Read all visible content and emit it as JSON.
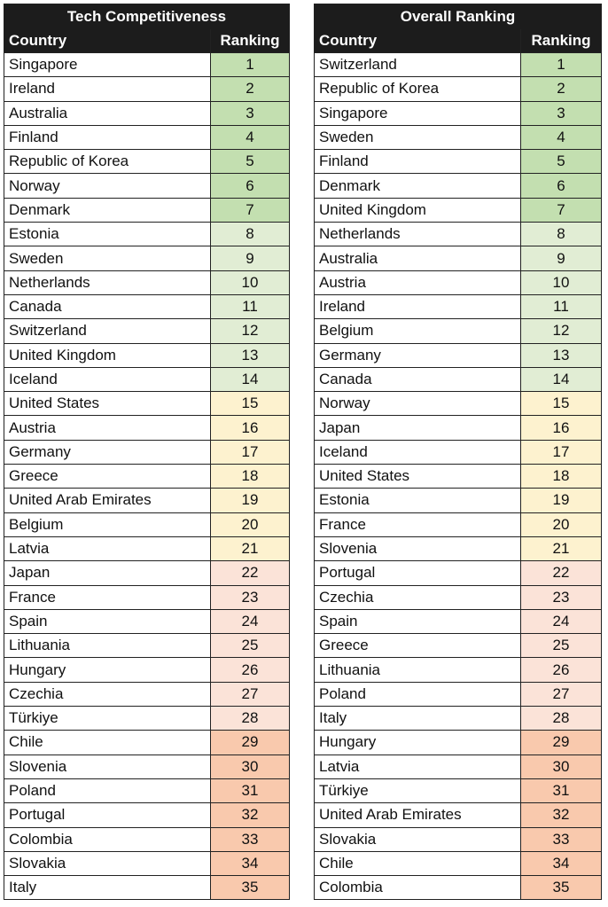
{
  "palette": [
    "#c3dfb0",
    "#e1edd4",
    "#fdf2cf",
    "#fbe3d8",
    "#f9c9ad"
  ],
  "tables": [
    {
      "title": "Tech Competitiveness",
      "col_country": "Country",
      "col_rank": "Ranking",
      "rows": [
        {
          "country": "Singapore",
          "rank": 1
        },
        {
          "country": "Ireland",
          "rank": 2
        },
        {
          "country": "Australia",
          "rank": 3
        },
        {
          "country": "Finland",
          "rank": 4
        },
        {
          "country": "Republic of Korea",
          "rank": 5
        },
        {
          "country": "Norway",
          "rank": 6
        },
        {
          "country": "Denmark",
          "rank": 7
        },
        {
          "country": "Estonia",
          "rank": 8
        },
        {
          "country": "Sweden",
          "rank": 9
        },
        {
          "country": "Netherlands",
          "rank": 10
        },
        {
          "country": "Canada",
          "rank": 11
        },
        {
          "country": "Switzerland",
          "rank": 12
        },
        {
          "country": "United Kingdom",
          "rank": 13
        },
        {
          "country": "Iceland",
          "rank": 14
        },
        {
          "country": "United States",
          "rank": 15
        },
        {
          "country": "Austria",
          "rank": 16
        },
        {
          "country": "Germany",
          "rank": 17
        },
        {
          "country": "Greece",
          "rank": 18
        },
        {
          "country": "United Arab Emirates",
          "rank": 19
        },
        {
          "country": "Belgium",
          "rank": 20
        },
        {
          "country": "Latvia",
          "rank": 21
        },
        {
          "country": "Japan",
          "rank": 22
        },
        {
          "country": "France",
          "rank": 23
        },
        {
          "country": "Spain",
          "rank": 24
        },
        {
          "country": "Lithuania",
          "rank": 25
        },
        {
          "country": "Hungary",
          "rank": 26
        },
        {
          "country": "Czechia",
          "rank": 27
        },
        {
          "country": "Türkiye",
          "rank": 28
        },
        {
          "country": "Chile",
          "rank": 29
        },
        {
          "country": "Slovenia",
          "rank": 30
        },
        {
          "country": "Poland",
          "rank": 31
        },
        {
          "country": "Portugal",
          "rank": 32
        },
        {
          "country": "Colombia",
          "rank": 33
        },
        {
          "country": "Slovakia",
          "rank": 34
        },
        {
          "country": "Italy",
          "rank": 35
        }
      ]
    },
    {
      "title": "Overall Ranking",
      "col_country": "Country",
      "col_rank": "Ranking",
      "rows": [
        {
          "country": "Switzerland",
          "rank": 1
        },
        {
          "country": "Republic of Korea",
          "rank": 2
        },
        {
          "country": "Singapore",
          "rank": 3
        },
        {
          "country": "Sweden",
          "rank": 4
        },
        {
          "country": "Finland",
          "rank": 5
        },
        {
          "country": "Denmark",
          "rank": 6
        },
        {
          "country": "United Kingdom",
          "rank": 7
        },
        {
          "country": "Netherlands",
          "rank": 8
        },
        {
          "country": "Australia",
          "rank": 9
        },
        {
          "country": "Austria",
          "rank": 10
        },
        {
          "country": "Ireland",
          "rank": 11
        },
        {
          "country": "Belgium",
          "rank": 12
        },
        {
          "country": "Germany",
          "rank": 13
        },
        {
          "country": "Canada",
          "rank": 14
        },
        {
          "country": "Norway",
          "rank": 15
        },
        {
          "country": "Japan",
          "rank": 16
        },
        {
          "country": "Iceland",
          "rank": 17
        },
        {
          "country": "United States",
          "rank": 18
        },
        {
          "country": "Estonia",
          "rank": 19
        },
        {
          "country": "France",
          "rank": 20
        },
        {
          "country": "Slovenia",
          "rank": 21
        },
        {
          "country": "Portugal",
          "rank": 22
        },
        {
          "country": "Czechia",
          "rank": 23
        },
        {
          "country": "Spain",
          "rank": 24
        },
        {
          "country": "Greece",
          "rank": 25
        },
        {
          "country": "Lithuania",
          "rank": 26
        },
        {
          "country": "Poland",
          "rank": 27
        },
        {
          "country": "Italy",
          "rank": 28
        },
        {
          "country": "Hungary",
          "rank": 29
        },
        {
          "country": "Latvia",
          "rank": 30
        },
        {
          "country": "Türkiye",
          "rank": 31
        },
        {
          "country": "United Arab Emirates",
          "rank": 32
        },
        {
          "country": "Slovakia",
          "rank": 33
        },
        {
          "country": "Chile",
          "rank": 34
        },
        {
          "country": "Colombia",
          "rank": 35
        }
      ]
    }
  ]
}
